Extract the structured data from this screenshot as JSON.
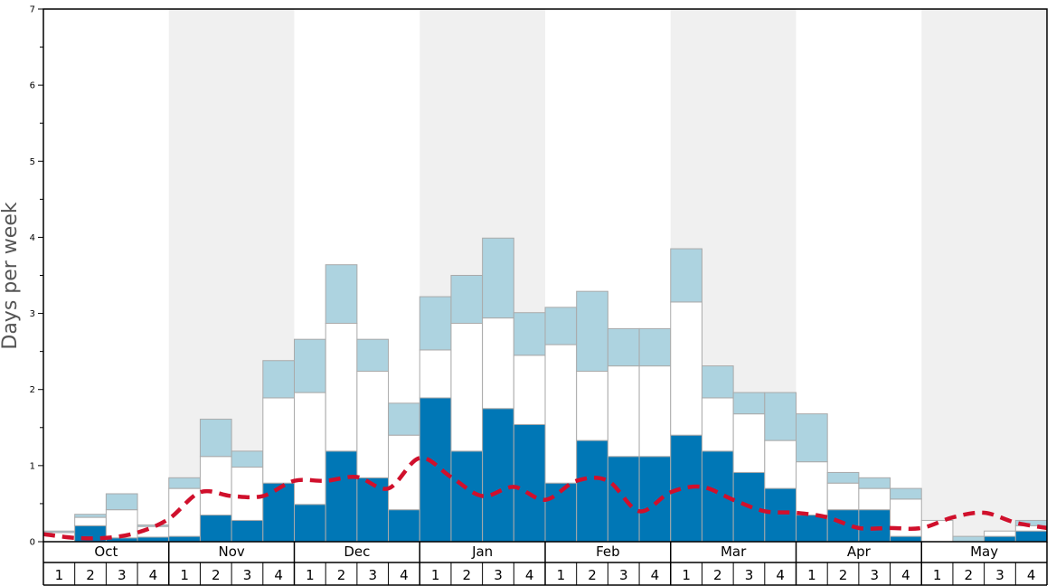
{
  "chart_data": {
    "type": "bar",
    "ylabel": "Days per week",
    "ylim": [
      0,
      7
    ],
    "yticks": [
      "0",
      "1",
      "2",
      "3",
      "4",
      "5",
      "6",
      "7"
    ],
    "months": [
      "Oct",
      "Nov",
      "Dec",
      "Jan",
      "Feb",
      "Mar",
      "Apr",
      "May"
    ],
    "weeks": [
      "1",
      "2",
      "3",
      "4"
    ],
    "shaded_months": [
      "Nov",
      "Jan",
      "Mar",
      "May"
    ],
    "colors": {
      "dark": "#0077b6",
      "mid": "#ffffff",
      "light": "#add3e0",
      "edge": "#aaaaaa",
      "trend": "#d0102c",
      "shade": "#f0f0f0"
    },
    "series": [
      {
        "key": "dark",
        "values": [
          0.0,
          0.21,
          0.05,
          0.06,
          0.07,
          0.35,
          0.28,
          0.77,
          0.49,
          1.19,
          0.84,
          0.42,
          1.89,
          1.19,
          1.75,
          1.54,
          0.77,
          1.33,
          1.12,
          1.12,
          1.4,
          1.19,
          0.91,
          0.7,
          0.35,
          0.42,
          0.42,
          0.07,
          0.0,
          0.0,
          0.07,
          0.14
        ]
      },
      {
        "key": "mid",
        "values": [
          0.12,
          0.11,
          0.37,
          0.14,
          0.63,
          0.77,
          0.7,
          1.12,
          1.47,
          1.68,
          1.4,
          0.98,
          0.63,
          1.68,
          1.19,
          0.91,
          1.82,
          0.91,
          1.19,
          1.19,
          1.75,
          0.7,
          0.77,
          0.63,
          0.7,
          0.35,
          0.28,
          0.49,
          0.28,
          0.0,
          0.07,
          0.07
        ]
      },
      {
        "key": "light",
        "values": [
          0.02,
          0.04,
          0.21,
          0.02,
          0.14,
          0.49,
          0.21,
          0.49,
          0.7,
          0.77,
          0.42,
          0.42,
          0.7,
          0.63,
          1.05,
          0.56,
          0.49,
          1.05,
          0.49,
          0.49,
          0.7,
          0.42,
          0.28,
          0.63,
          0.63,
          0.14,
          0.14,
          0.14,
          0.0,
          0.07,
          0.0,
          0.07
        ]
      }
    ],
    "trend": [
      0.1,
      0.05,
      0.05,
      0.12,
      0.3,
      0.65,
      0.6,
      0.6,
      0.8,
      0.8,
      0.85,
      0.7,
      1.1,
      0.85,
      0.6,
      0.72,
      0.55,
      0.8,
      0.8,
      0.4,
      0.65,
      0.72,
      0.55,
      0.4,
      0.38,
      0.32,
      0.18,
      0.18,
      0.18,
      0.32,
      0.38,
      0.25,
      0.18
    ]
  }
}
